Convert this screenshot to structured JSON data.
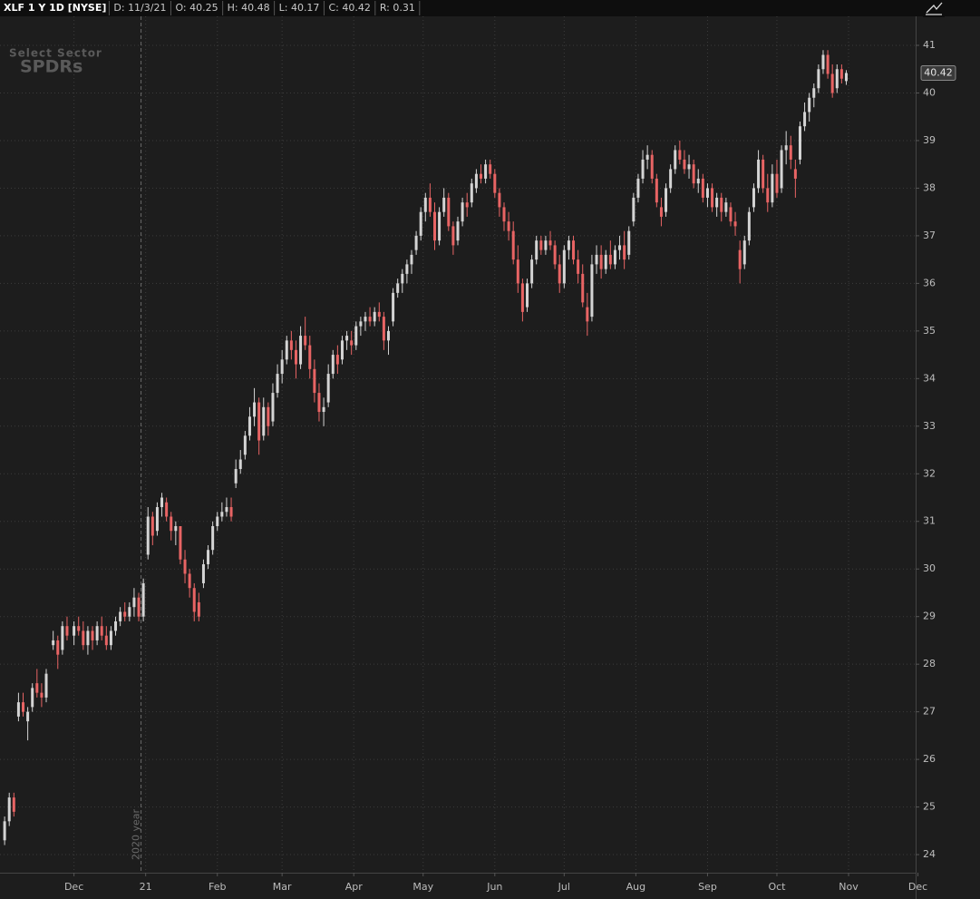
{
  "header": {
    "symbol": "XLF 1 Y 1D [NYSE]",
    "fields": [
      "D: 11/3/21",
      "O: 40.25",
      "H: 40.48",
      "L: 40.17",
      "C: 40.42",
      "R: 0.31"
    ]
  },
  "watermark": {
    "top": "Select Sector",
    "bottom": "SPDRs"
  },
  "chart_data": {
    "type": "candlestick",
    "up_color": "#d4d4d4",
    "down_color": "#e86464",
    "grid": true,
    "xlim": [
      -2,
      394
    ],
    "ylim": [
      23.62,
      41.61
    ],
    "xticks": [
      {
        "value": 30,
        "label": "Dec"
      },
      {
        "value": 61,
        "label": "21"
      },
      {
        "value": 92,
        "label": "Feb"
      },
      {
        "value": 120,
        "label": "Mar"
      },
      {
        "value": 151,
        "label": "Apr"
      },
      {
        "value": 181,
        "label": "May"
      },
      {
        "value": 212,
        "label": "Jun"
      },
      {
        "value": 242,
        "label": "Jul"
      },
      {
        "value": 273,
        "label": "Aug"
      },
      {
        "value": 304,
        "label": "Sep"
      },
      {
        "value": 334,
        "label": "Oct"
      },
      {
        "value": 365,
        "label": "Nov"
      },
      {
        "value": 395,
        "label": "Dec"
      }
    ],
    "yticks": [
      24,
      25,
      26,
      27,
      28,
      29,
      30,
      31,
      32,
      33,
      34,
      35,
      36,
      37,
      38,
      39,
      40,
      41
    ],
    "year_marker": {
      "x": 59,
      "label": "2020 year"
    },
    "candles": [
      [
        0,
        24.3,
        24.8,
        24.2,
        24.7
      ],
      [
        2,
        24.7,
        25.3,
        24.6,
        25.2
      ],
      [
        4,
        25.2,
        25.3,
        24.8,
        24.9
      ],
      [
        6,
        26.9,
        27.4,
        26.8,
        27.2
      ],
      [
        8,
        27.2,
        27.4,
        26.9,
        27.0
      ],
      [
        10,
        26.8,
        27.1,
        26.4,
        27.0
      ],
      [
        12,
        27.1,
        27.6,
        27.0,
        27.5
      ],
      [
        14,
        27.6,
        27.9,
        27.3,
        27.4
      ],
      [
        16,
        27.4,
        27.6,
        27.1,
        27.3
      ],
      [
        18,
        27.3,
        27.9,
        27.2,
        27.8
      ],
      [
        21,
        28.4,
        28.7,
        28.3,
        28.5
      ],
      [
        23,
        28.5,
        28.6,
        27.9,
        28.2
      ],
      [
        25,
        28.3,
        28.9,
        28.2,
        28.8
      ],
      [
        27,
        28.8,
        29.0,
        28.5,
        28.6
      ],
      [
        30,
        28.6,
        28.9,
        28.4,
        28.8
      ],
      [
        32,
        28.8,
        29.0,
        28.6,
        28.7
      ],
      [
        34,
        28.7,
        28.9,
        28.3,
        28.4
      ],
      [
        36,
        28.4,
        28.8,
        28.2,
        28.7
      ],
      [
        38,
        28.7,
        28.8,
        28.3,
        28.5
      ],
      [
        40,
        28.5,
        28.9,
        28.4,
        28.8
      ],
      [
        42,
        28.8,
        29.0,
        28.5,
        28.6
      ],
      [
        44,
        28.6,
        28.8,
        28.3,
        28.4
      ],
      [
        46,
        28.4,
        28.8,
        28.3,
        28.7
      ],
      [
        48,
        28.7,
        29.0,
        28.6,
        28.9
      ],
      [
        50,
        28.9,
        29.2,
        28.8,
        29.1
      ],
      [
        52,
        29.1,
        29.3,
        28.9,
        29.0
      ],
      [
        54,
        29.0,
        29.3,
        28.9,
        29.2
      ],
      [
        56,
        29.2,
        29.6,
        29.0,
        29.4
      ],
      [
        58,
        29.4,
        29.5,
        28.9,
        29.0
      ],
      [
        60,
        29.0,
        29.8,
        28.9,
        29.7
      ],
      [
        62,
        30.3,
        31.3,
        30.2,
        31.1
      ],
      [
        64,
        31.1,
        31.2,
        30.5,
        30.7
      ],
      [
        66,
        30.8,
        31.4,
        30.7,
        31.3
      ],
      [
        68,
        31.3,
        31.6,
        31.1,
        31.5
      ],
      [
        70,
        31.4,
        31.5,
        31.0,
        31.1
      ],
      [
        72,
        31.1,
        31.2,
        30.6,
        30.8
      ],
      [
        74,
        30.8,
        31.0,
        30.5,
        30.9
      ],
      [
        76,
        30.9,
        30.9,
        30.1,
        30.2
      ],
      [
        78,
        30.2,
        30.4,
        29.7,
        29.9
      ],
      [
        80,
        29.9,
        30.0,
        29.4,
        29.6
      ],
      [
        82,
        29.6,
        29.7,
        28.9,
        29.1
      ],
      [
        84,
        29.3,
        29.5,
        28.9,
        29.0
      ],
      [
        86,
        29.7,
        30.2,
        29.6,
        30.1
      ],
      [
        88,
        30.1,
        30.5,
        30.0,
        30.4
      ],
      [
        90,
        30.4,
        31.0,
        30.3,
        30.9
      ],
      [
        92,
        30.9,
        31.2,
        30.8,
        31.1
      ],
      [
        94,
        31.1,
        31.4,
        31.0,
        31.2
      ],
      [
        96,
        31.2,
        31.5,
        31.1,
        31.3
      ],
      [
        98,
        31.3,
        31.5,
        31.0,
        31.1
      ],
      [
        100,
        31.8,
        32.3,
        31.7,
        32.1
      ],
      [
        102,
        32.1,
        32.5,
        32.0,
        32.3
      ],
      [
        104,
        32.4,
        32.9,
        32.3,
        32.8
      ],
      [
        106,
        32.8,
        33.4,
        32.7,
        33.2
      ],
      [
        108,
        33.2,
        33.8,
        33.0,
        33.5
      ],
      [
        110,
        33.5,
        33.6,
        32.4,
        32.7
      ],
      [
        112,
        32.8,
        33.6,
        32.7,
        33.4
      ],
      [
        114,
        33.4,
        33.5,
        32.8,
        33.0
      ],
      [
        116,
        33.1,
        33.9,
        33.0,
        33.7
      ],
      [
        118,
        33.7,
        34.3,
        33.6,
        34.1
      ],
      [
        120,
        34.1,
        34.6,
        33.9,
        34.4
      ],
      [
        122,
        34.4,
        34.9,
        34.3,
        34.8
      ],
      [
        124,
        34.8,
        35.0,
        34.4,
        34.6
      ],
      [
        126,
        34.6,
        34.8,
        34.0,
        34.3
      ],
      [
        128,
        34.3,
        35.1,
        34.2,
        34.9
      ],
      [
        130,
        34.9,
        35.3,
        34.6,
        34.7
      ],
      [
        132,
        34.7,
        34.9,
        34.0,
        34.2
      ],
      [
        134,
        34.2,
        34.4,
        33.5,
        33.7
      ],
      [
        136,
        33.7,
        33.9,
        33.1,
        33.3
      ],
      [
        138,
        33.3,
        33.6,
        33.0,
        33.4
      ],
      [
        140,
        33.5,
        34.3,
        33.4,
        34.1
      ],
      [
        142,
        34.1,
        34.6,
        34.0,
        34.5
      ],
      [
        144,
        34.5,
        34.7,
        34.1,
        34.3
      ],
      [
        146,
        34.4,
        34.9,
        34.3,
        34.8
      ],
      [
        148,
        34.8,
        35.0,
        34.6,
        34.9
      ],
      [
        150,
        34.8,
        35.0,
        34.5,
        34.7
      ],
      [
        152,
        34.7,
        35.2,
        34.6,
        35.1
      ],
      [
        154,
        35.1,
        35.3,
        34.9,
        35.2
      ],
      [
        156,
        35.2,
        35.4,
        35.0,
        35.3
      ],
      [
        158,
        35.3,
        35.5,
        35.1,
        35.2
      ],
      [
        160,
        35.2,
        35.5,
        35.1,
        35.4
      ],
      [
        162,
        35.4,
        35.6,
        35.2,
        35.3
      ],
      [
        164,
        35.3,
        35.4,
        34.6,
        34.8
      ],
      [
        166,
        34.8,
        35.1,
        34.5,
        35.0
      ],
      [
        168,
        35.2,
        35.9,
        35.1,
        35.8
      ],
      [
        170,
        35.8,
        36.1,
        35.7,
        36.0
      ],
      [
        172,
        36.0,
        36.3,
        35.8,
        36.2
      ],
      [
        174,
        36.2,
        36.5,
        36.0,
        36.4
      ],
      [
        176,
        36.4,
        36.7,
        36.2,
        36.6
      ],
      [
        178,
        36.7,
        37.1,
        36.6,
        37.0
      ],
      [
        180,
        37.0,
        37.6,
        36.9,
        37.5
      ],
      [
        182,
        37.5,
        37.9,
        37.3,
        37.8
      ],
      [
        184,
        37.8,
        38.1,
        37.4,
        37.5
      ],
      [
        186,
        37.5,
        37.7,
        36.7,
        36.9
      ],
      [
        188,
        36.9,
        37.6,
        36.8,
        37.5
      ],
      [
        190,
        37.5,
        38.0,
        37.4,
        37.8
      ],
      [
        192,
        37.8,
        37.9,
        37.1,
        37.2
      ],
      [
        194,
        37.2,
        37.3,
        36.6,
        36.8
      ],
      [
        196,
        36.9,
        37.4,
        36.8,
        37.3
      ],
      [
        198,
        37.3,
        37.8,
        37.2,
        37.7
      ],
      [
        200,
        37.7,
        37.9,
        37.4,
        37.6
      ],
      [
        202,
        37.7,
        38.2,
        37.6,
        38.1
      ],
      [
        204,
        38.0,
        38.4,
        37.9,
        38.3
      ],
      [
        206,
        38.3,
        38.5,
        38.1,
        38.2
      ],
      [
        208,
        38.2,
        38.6,
        38.1,
        38.5
      ],
      [
        210,
        38.5,
        38.6,
        38.2,
        38.3
      ],
      [
        212,
        38.3,
        38.4,
        37.8,
        37.9
      ],
      [
        214,
        37.9,
        38.0,
        37.4,
        37.6
      ],
      [
        216,
        37.6,
        37.7,
        37.1,
        37.3
      ],
      [
        218,
        37.3,
        37.5,
        36.9,
        37.1
      ],
      [
        220,
        37.1,
        37.3,
        36.4,
        36.5
      ],
      [
        222,
        36.5,
        36.8,
        35.8,
        36.0
      ],
      [
        224,
        36.0,
        36.1,
        35.2,
        35.4
      ],
      [
        226,
        35.5,
        36.1,
        35.4,
        36.0
      ],
      [
        228,
        36.0,
        36.6,
        35.9,
        36.5
      ],
      [
        230,
        36.5,
        37.0,
        36.4,
        36.9
      ],
      [
        232,
        36.9,
        37.0,
        36.6,
        36.7
      ],
      [
        234,
        36.7,
        37.0,
        36.6,
        36.9
      ],
      [
        236,
        36.9,
        37.1,
        36.7,
        36.8
      ],
      [
        238,
        36.8,
        36.9,
        36.3,
        36.4
      ],
      [
        240,
        36.4,
        36.6,
        35.8,
        36.0
      ],
      [
        242,
        36.0,
        36.8,
        35.9,
        36.7
      ],
      [
        244,
        36.7,
        37.0,
        36.5,
        36.9
      ],
      [
        246,
        36.9,
        37.0,
        36.4,
        36.5
      ],
      [
        248,
        36.5,
        36.7,
        36.0,
        36.2
      ],
      [
        250,
        36.2,
        36.4,
        35.5,
        35.6
      ],
      [
        252,
        35.5,
        35.8,
        34.9,
        35.2
      ],
      [
        254,
        35.3,
        36.6,
        35.2,
        36.4
      ],
      [
        256,
        36.4,
        36.8,
        36.2,
        36.6
      ],
      [
        258,
        36.6,
        36.8,
        36.1,
        36.3
      ],
      [
        260,
        36.3,
        36.7,
        36.2,
        36.6
      ],
      [
        262,
        36.6,
        36.9,
        36.3,
        36.4
      ],
      [
        264,
        36.4,
        36.8,
        36.3,
        36.7
      ],
      [
        266,
        36.7,
        37.0,
        36.5,
        36.8
      ],
      [
        268,
        36.8,
        37.1,
        36.3,
        36.5
      ],
      [
        270,
        36.6,
        37.2,
        36.5,
        37.1
      ],
      [
        272,
        37.3,
        37.9,
        37.2,
        37.8
      ],
      [
        274,
        37.8,
        38.3,
        37.7,
        38.2
      ],
      [
        276,
        38.2,
        38.8,
        38.1,
        38.6
      ],
      [
        278,
        38.6,
        38.9,
        38.4,
        38.7
      ],
      [
        280,
        38.7,
        38.8,
        38.1,
        38.2
      ],
      [
        282,
        38.2,
        38.3,
        37.6,
        37.7
      ],
      [
        284,
        37.6,
        37.8,
        37.2,
        37.4
      ],
      [
        286,
        37.5,
        38.1,
        37.4,
        38.0
      ],
      [
        288,
        38.0,
        38.5,
        37.9,
        38.4
      ],
      [
        290,
        38.4,
        38.9,
        38.3,
        38.8
      ],
      [
        292,
        38.8,
        39.0,
        38.5,
        38.6
      ],
      [
        294,
        38.6,
        38.8,
        38.3,
        38.4
      ],
      [
        296,
        38.4,
        38.7,
        38.2,
        38.5
      ],
      [
        298,
        38.5,
        38.6,
        38.0,
        38.1
      ],
      [
        300,
        38.1,
        38.4,
        37.9,
        38.2
      ],
      [
        302,
        38.2,
        38.3,
        37.7,
        37.8
      ],
      [
        304,
        37.8,
        38.1,
        37.6,
        38.0
      ],
      [
        306,
        38.0,
        38.1,
        37.5,
        37.6
      ],
      [
        308,
        37.6,
        37.9,
        37.4,
        37.8
      ],
      [
        310,
        37.8,
        37.9,
        37.3,
        37.5
      ],
      [
        312,
        37.5,
        37.8,
        37.4,
        37.7
      ],
      [
        314,
        37.6,
        37.7,
        37.2,
        37.3
      ],
      [
        316,
        37.3,
        37.5,
        37.0,
        37.2
      ],
      [
        318,
        36.7,
        36.9,
        36.0,
        36.3
      ],
      [
        320,
        36.4,
        37.0,
        36.3,
        36.9
      ],
      [
        322,
        36.9,
        37.6,
        36.8,
        37.5
      ],
      [
        324,
        37.6,
        38.1,
        37.5,
        38.0
      ],
      [
        326,
        38.0,
        38.8,
        37.9,
        38.6
      ],
      [
        328,
        38.6,
        38.7,
        37.9,
        38.0
      ],
      [
        330,
        38.0,
        38.3,
        37.5,
        37.7
      ],
      [
        332,
        37.7,
        38.5,
        37.6,
        38.3
      ],
      [
        334,
        38.3,
        38.6,
        37.8,
        37.9
      ],
      [
        336,
        38.0,
        38.9,
        37.9,
        38.8
      ],
      [
        338,
        38.8,
        39.2,
        38.5,
        38.9
      ],
      [
        340,
        38.9,
        39.1,
        38.4,
        38.6
      ],
      [
        342,
        38.4,
        38.6,
        37.8,
        38.2
      ],
      [
        344,
        38.6,
        39.4,
        38.5,
        39.3
      ],
      [
        346,
        39.3,
        39.8,
        39.2,
        39.6
      ],
      [
        348,
        39.6,
        40.0,
        39.4,
        39.9
      ],
      [
        350,
        39.9,
        40.2,
        39.7,
        40.1
      ],
      [
        352,
        40.1,
        40.6,
        40.0,
        40.5
      ],
      [
        354,
        40.5,
        40.9,
        40.4,
        40.8
      ],
      [
        356,
        40.8,
        40.9,
        40.3,
        40.4
      ],
      [
        358,
        40.4,
        40.6,
        39.9,
        40.0
      ],
      [
        360,
        40.1,
        40.6,
        40.0,
        40.5
      ],
      [
        362,
        40.5,
        40.6,
        40.2,
        40.3
      ],
      [
        364,
        40.25,
        40.48,
        40.17,
        40.42
      ]
    ]
  }
}
